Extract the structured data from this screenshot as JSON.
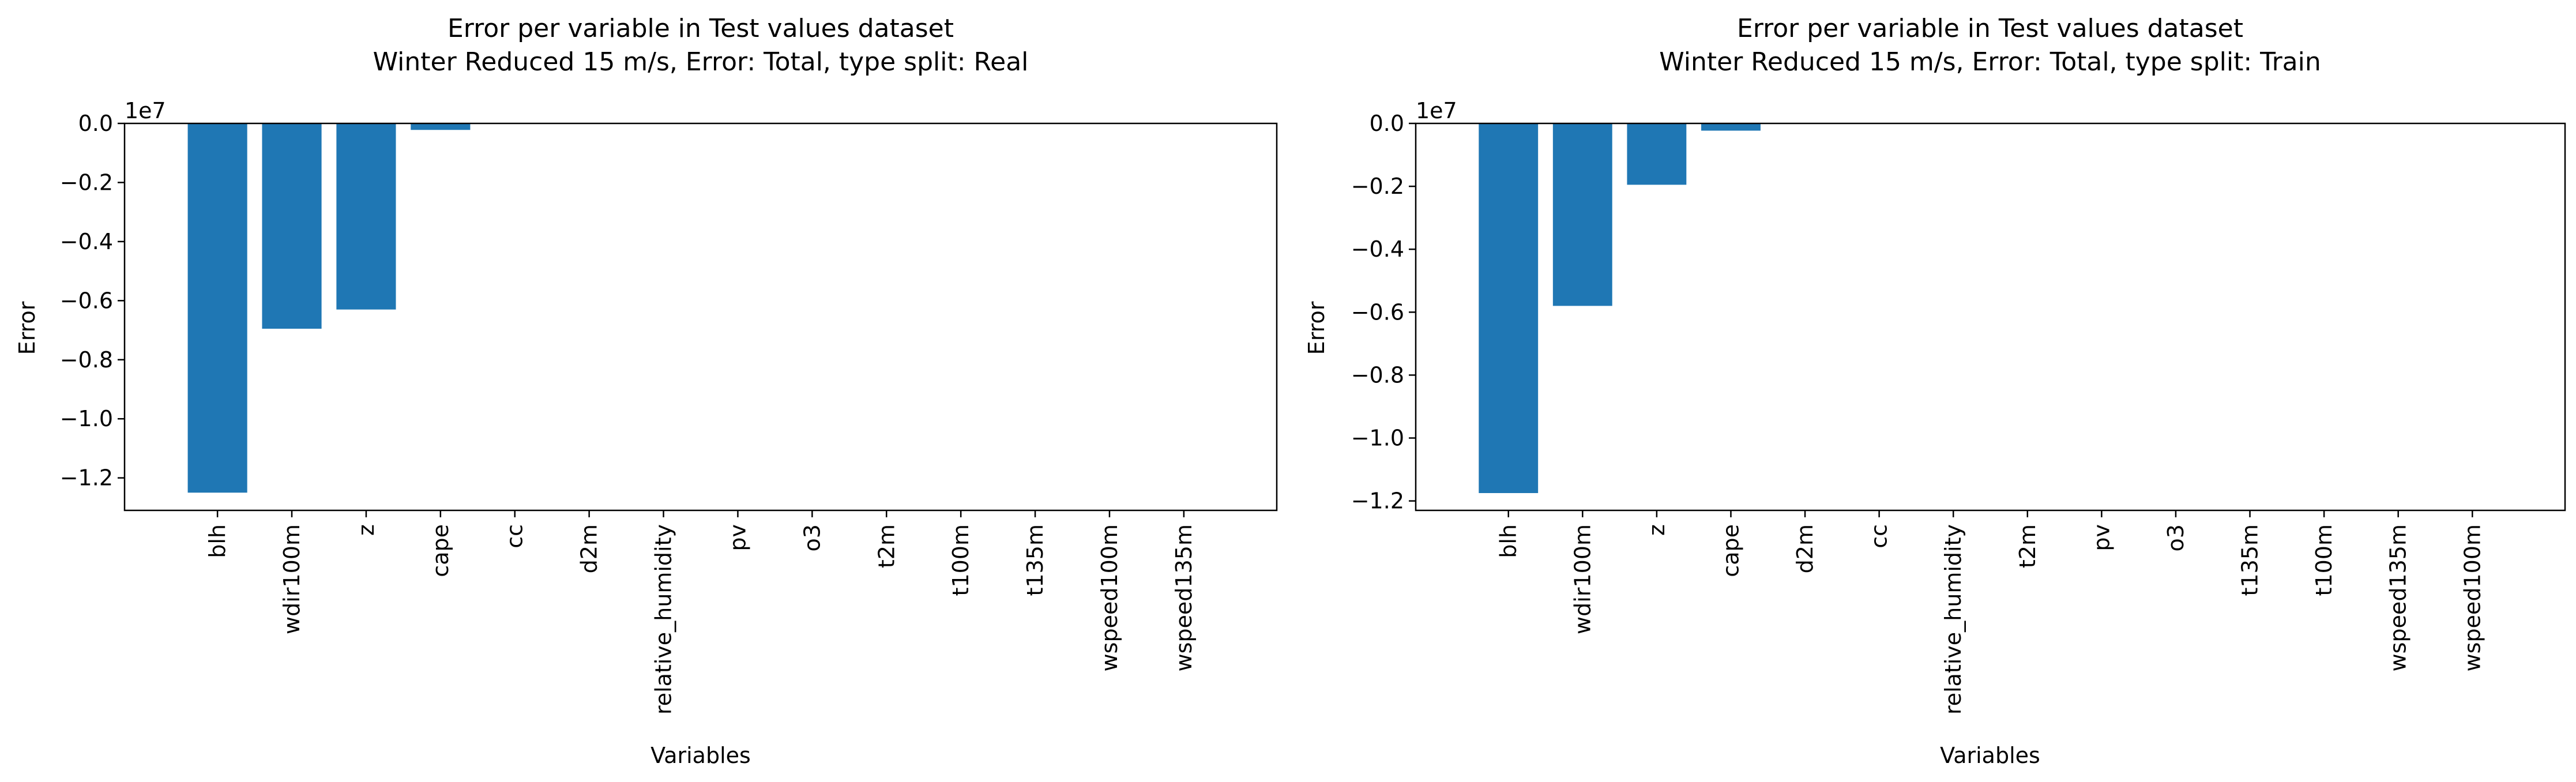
{
  "chart_data": [
    {
      "type": "bar",
      "title": "Error per variable in Test values dataset",
      "subtitle": "Winter Reduced 15 m/s, Error: Total, type split: Real",
      "xlabel": "Variables",
      "ylabel": "Error",
      "offset_text": "1e7",
      "bar_color": "#1f77b4",
      "grid": false,
      "categories": [
        "blh",
        "wdir100m",
        "z",
        "cape",
        "cc",
        "d2m",
        "relative_humidity",
        "pv",
        "o3",
        "t2m",
        "t100m",
        "t135m",
        "wspeed100m",
        "wspeed135m"
      ],
      "values": [
        -12500000,
        -6950000,
        -6300000,
        -220000,
        0,
        0,
        0,
        0,
        0,
        0,
        0,
        0,
        0,
        0
      ],
      "ylim": [
        -13100000,
        0
      ],
      "yticks": [
        0,
        -2000000,
        -4000000,
        -6000000,
        -8000000,
        -10000000,
        -12000000
      ],
      "ytick_labels": [
        "0.0",
        "−0.2",
        "−0.4",
        "−0.6",
        "−0.8",
        "−1.0",
        "−1.2"
      ]
    },
    {
      "type": "bar",
      "title": "Error per variable in Test values dataset",
      "subtitle": "Winter Reduced 15 m/s, Error: Total, type split: Train",
      "xlabel": "Variables",
      "ylabel": "Error",
      "offset_text": "1e7",
      "bar_color": "#1f77b4",
      "grid": false,
      "categories": [
        "blh",
        "wdir100m",
        "z",
        "cape",
        "d2m",
        "cc",
        "relative_humidity",
        "t2m",
        "pv",
        "o3",
        "t135m",
        "t100m",
        "wspeed135m",
        "wspeed100m"
      ],
      "values": [
        -11750000,
        -5800000,
        -1950000,
        -230000,
        0,
        0,
        0,
        0,
        0,
        0,
        0,
        0,
        0,
        0
      ],
      "ylim": [
        -12300000,
        0
      ],
      "yticks": [
        0,
        -2000000,
        -4000000,
        -6000000,
        -8000000,
        -10000000,
        -12000000
      ],
      "ytick_labels": [
        "0.0",
        "−0.2",
        "−0.4",
        "−0.6",
        "−0.8",
        "−1.0",
        "−1.2"
      ]
    }
  ]
}
